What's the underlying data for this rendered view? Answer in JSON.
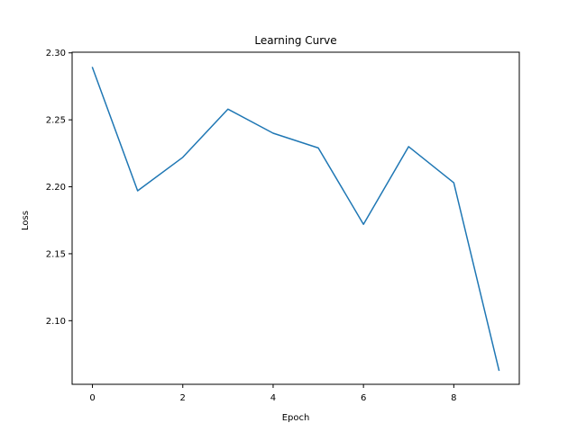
{
  "chart_data": {
    "type": "line",
    "title": "Learning Curve",
    "xlabel": "Epoch",
    "ylabel": "Loss",
    "xlim": [
      -0.45,
      9.45
    ],
    "ylim": [
      2.0525,
      2.3005
    ],
    "xticks": [
      0,
      2,
      4,
      6,
      8
    ],
    "xtick_labels": [
      "0",
      "2",
      "4",
      "6",
      "8"
    ],
    "yticks": [
      2.1,
      2.15,
      2.2,
      2.25,
      2.3
    ],
    "ytick_labels": [
      "2.10",
      "2.15",
      "2.20",
      "2.25",
      "2.30"
    ],
    "grid": false,
    "legend": "none",
    "series": [
      {
        "color": "#1f77b4",
        "x": [
          0,
          1,
          2,
          3,
          4,
          5,
          6,
          7,
          8,
          9
        ],
        "y": [
          2.289,
          2.197,
          2.222,
          2.258,
          2.24,
          2.229,
          2.172,
          2.23,
          2.203,
          2.063
        ]
      }
    ]
  }
}
